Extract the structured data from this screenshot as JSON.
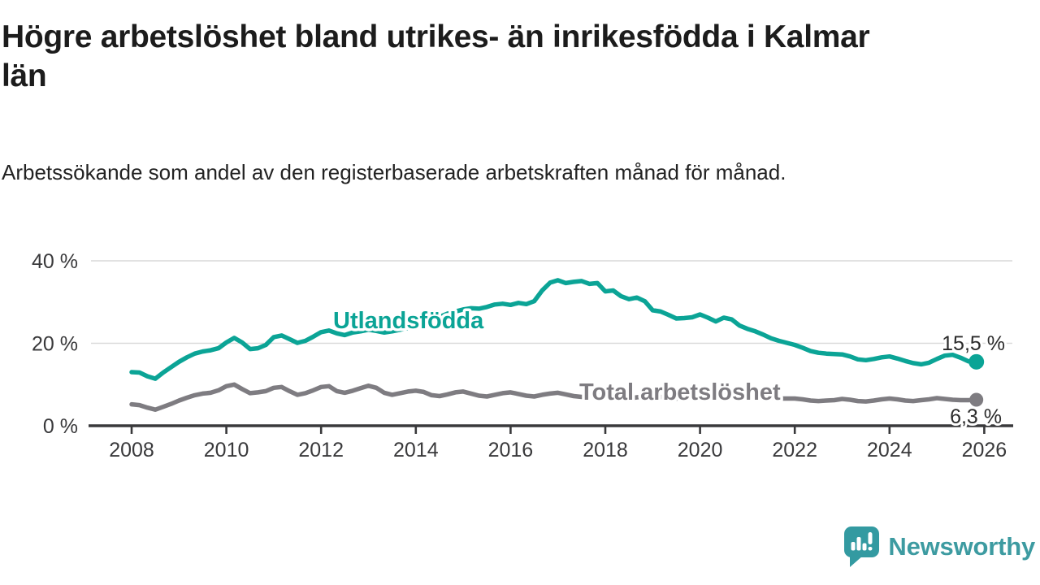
{
  "header": {
    "title": "Högre arbetslöshet bland utrikes- än inrikesfödda i Kalmar län",
    "subtitle": "Arbetssökande som andel av den registerbaserade arbetskraften månad för månad."
  },
  "logo": {
    "text": "Newsworthy",
    "icon": "newsworthy-bubble-chart-icon",
    "color_text": "#3d9ba1",
    "color_icon": "#339aa1"
  },
  "chart_data": {
    "type": "line",
    "title": "Högre arbetslöshet bland utrikes- än inrikesfödda i Kalmar län",
    "xlabel": "",
    "ylabel": "Arbetssökande som andel av den registerbaserade arbetskraften (%)",
    "x_start_year": 2008.0,
    "points_per_year": 6,
    "x_end_year": 2025.83,
    "xlim": [
      2007.15,
      2026.6
    ],
    "ylim": [
      0,
      42
    ],
    "grid": "horizontal",
    "x_ticks": [
      2008,
      2010,
      2012,
      2014,
      2016,
      2018,
      2020,
      2022,
      2024,
      2026
    ],
    "y_ticks": [
      {
        "value": 0,
        "label": "0 %"
      },
      {
        "value": 20,
        "label": "20 %"
      },
      {
        "value": 40,
        "label": "40 %"
      }
    ],
    "axis_color": "#39393b",
    "grid_color": "#d9d9d9",
    "end_label_color": "#2b2b2b",
    "series": [
      {
        "name": "Total arbetslöshet",
        "color": "#7e7c81",
        "end_value": 6.3,
        "end_label": "6,3 %",
        "values": [
          5.2,
          5.0,
          4.4,
          3.9,
          4.6,
          5.3,
          6.1,
          6.8,
          7.4,
          7.8,
          8.0,
          8.6,
          9.6,
          10.0,
          8.9,
          7.9,
          8.1,
          8.4,
          9.2,
          9.4,
          8.4,
          7.5,
          7.9,
          8.6,
          9.4,
          9.6,
          8.4,
          8.0,
          8.5,
          9.1,
          9.7,
          9.2,
          8.0,
          7.5,
          7.9,
          8.3,
          8.5,
          8.2,
          7.4,
          7.2,
          7.6,
          8.1,
          8.3,
          7.8,
          7.3,
          7.1,
          7.5,
          7.9,
          8.1,
          7.7,
          7.3,
          7.1,
          7.5,
          7.8,
          8.0,
          7.6,
          7.2,
          7.0,
          7.2,
          7.4,
          7.5,
          7.2,
          6.8,
          6.6,
          6.9,
          7.1,
          7.3,
          7.0,
          6.7,
          6.6,
          6.8,
          7.1,
          7.4,
          7.6,
          7.8,
          7.6,
          7.4,
          7.3,
          7.4,
          7.2,
          6.9,
          6.7,
          6.6,
          6.6,
          6.6,
          6.4,
          6.1,
          6.0,
          6.1,
          6.2,
          6.5,
          6.3,
          6.0,
          5.9,
          6.1,
          6.4,
          6.6,
          6.4,
          6.1,
          6.0,
          6.2,
          6.4,
          6.7,
          6.5,
          6.3,
          6.2,
          6.2,
          6.3
        ]
      },
      {
        "name": "Utlandsfödda",
        "color": "#0ba496",
        "end_value": 15.5,
        "end_label": "15,5 %",
        "values": [
          13.0,
          12.9,
          12.0,
          11.4,
          12.9,
          14.2,
          15.5,
          16.6,
          17.5,
          18.0,
          18.3,
          18.8,
          20.2,
          21.3,
          20.2,
          18.6,
          18.8,
          19.6,
          21.5,
          21.9,
          21.0,
          20.1,
          20.6,
          21.6,
          22.7,
          23.1,
          22.4,
          22.0,
          22.6,
          22.9,
          23.3,
          23.0,
          22.6,
          22.9,
          23.3,
          23.7,
          24.2,
          24.8,
          25.6,
          26.4,
          27.2,
          27.7,
          28.2,
          28.5,
          28.4,
          28.8,
          29.4,
          29.6,
          29.3,
          29.8,
          29.5,
          30.2,
          32.8,
          34.7,
          35.3,
          34.6,
          34.9,
          35.1,
          34.4,
          34.6,
          32.6,
          32.8,
          31.4,
          30.7,
          31.1,
          30.2,
          28.0,
          27.7,
          26.9,
          26.0,
          26.1,
          26.3,
          27.0,
          26.2,
          25.3,
          26.2,
          25.8,
          24.3,
          23.5,
          22.9,
          22.1,
          21.2,
          20.6,
          20.1,
          19.6,
          18.9,
          18.1,
          17.7,
          17.5,
          17.4,
          17.3,
          16.8,
          16.1,
          15.9,
          16.2,
          16.6,
          16.8,
          16.3,
          15.7,
          15.2,
          14.9,
          15.3,
          16.2,
          17.0,
          17.2,
          16.5,
          15.6,
          15.5
        ]
      }
    ]
  }
}
